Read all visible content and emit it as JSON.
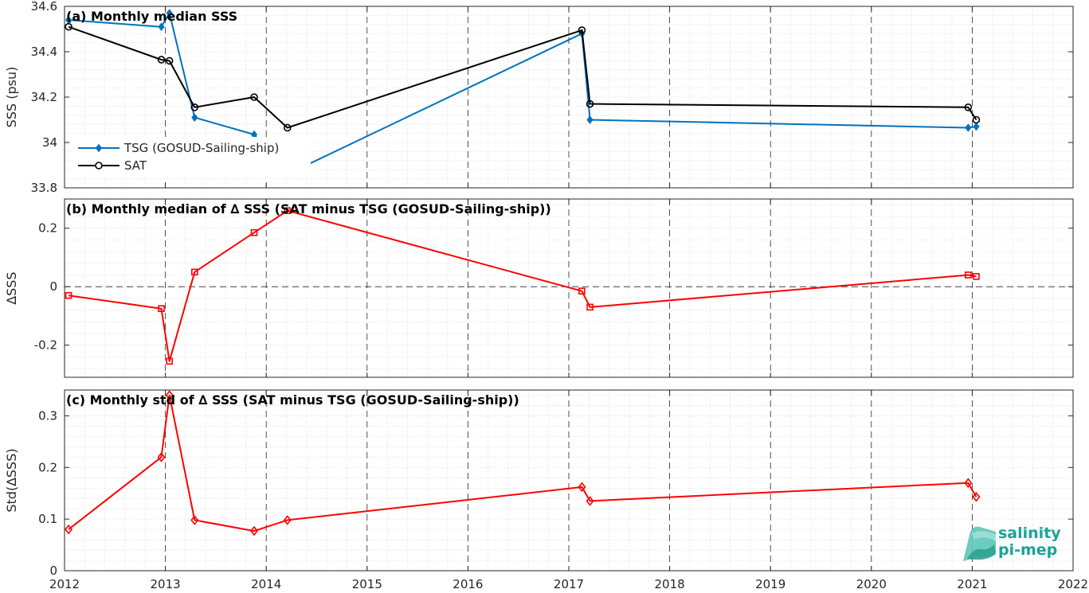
{
  "chart_data": [
    {
      "type": "line",
      "title": "(a) Monthly median SSS",
      "xlabel": "",
      "ylabel": "SSS (psu)",
      "xlim": [
        2012,
        2022
      ],
      "ylim": [
        33.8,
        34.6
      ],
      "xticks": [
        2012,
        2013,
        2014,
        2015,
        2016,
        2017,
        2018,
        2019,
        2020,
        2021,
        2022
      ],
      "yticks": [
        "33.8",
        "34",
        "34.2",
        "34.4",
        "34.6"
      ],
      "grid": true,
      "legend_position": "lower-left",
      "series": [
        {
          "name": "TSG (GOSUD-Sailing-ship)",
          "color": "#0072BD",
          "marker": "diamond",
          "x": [
            2012.04,
            2012.96,
            2013.04,
            2013.29,
            2013.88,
            2014.21,
            2017.13,
            2017.21,
            2020.96,
            2021.04
          ],
          "y": [
            34.54,
            34.51,
            34.57,
            34.11,
            34.035,
            33.86,
            34.48,
            34.1,
            34.065,
            34.07
          ]
        },
        {
          "name": "SAT",
          "color": "#000000",
          "marker": "circle",
          "x": [
            2012.04,
            2012.96,
            2013.04,
            2013.29,
            2013.88,
            2014.21,
            2017.13,
            2017.21,
            2020.96,
            2021.04
          ],
          "y": [
            34.51,
            34.365,
            34.36,
            34.155,
            34.2,
            34.065,
            34.495,
            34.17,
            34.155,
            34.1
          ]
        }
      ]
    },
    {
      "type": "line",
      "title": "(b) Monthly median of ∆ SSS (SAT minus TSG (GOSUD-Sailing-ship))",
      "xlabel": "",
      "ylabel": "∆SSS",
      "xlim": [
        2012,
        2022
      ],
      "ylim": [
        -0.31,
        0.3
      ],
      "xticks": [
        2012,
        2013,
        2014,
        2015,
        2016,
        2017,
        2018,
        2019,
        2020,
        2021,
        2022
      ],
      "yticks": [
        "-0.2",
        "0",
        "0.2"
      ],
      "grid": true,
      "zero_line": true,
      "series": [
        {
          "color": "#FF0000",
          "marker": "square",
          "x": [
            2012.04,
            2012.96,
            2013.04,
            2013.29,
            2013.88,
            2014.21,
            2017.13,
            2017.21,
            2020.96,
            2021.04
          ],
          "y": [
            -0.03,
            -0.075,
            -0.255,
            0.05,
            0.185,
            0.26,
            -0.015,
            -0.07,
            0.04,
            0.035
          ]
        }
      ]
    },
    {
      "type": "line",
      "title": "(c) Monthly std of ∆ SSS (SAT minus TSG (GOSUD-Sailing-ship))",
      "xlabel": "",
      "ylabel": "Std(∆SSS)",
      "xlim": [
        2012,
        2022
      ],
      "ylim": [
        0,
        0.35
      ],
      "xticks": [
        2012,
        2013,
        2014,
        2015,
        2016,
        2017,
        2018,
        2019,
        2020,
        2021,
        2022
      ],
      "yticks": [
        "0",
        "0.1",
        "0.2",
        "0.3"
      ],
      "grid": true,
      "series": [
        {
          "color": "#FF0000",
          "marker": "diamond",
          "x": [
            2012.04,
            2012.96,
            2013.04,
            2013.29,
            2013.88,
            2014.21,
            2017.13,
            2017.21,
            2020.96,
            2021.04
          ],
          "y": [
            0.08,
            0.22,
            0.34,
            0.098,
            0.077,
            0.098,
            0.162,
            0.135,
            0.17,
            0.143
          ]
        }
      ]
    }
  ],
  "logo": {
    "line1": "salinity",
    "line2": "pi-mep",
    "color": "#1aa39a"
  }
}
